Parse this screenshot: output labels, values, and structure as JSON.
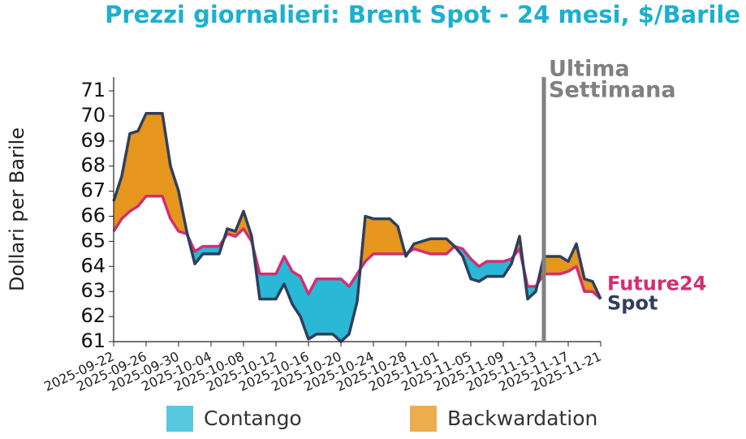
{
  "chart_data": {
    "type": "line",
    "title": "Prezzi giornalieri: Brent Spot - 24 mesi, $/Barile",
    "y_label": "Dollari per Barile",
    "x": [
      "2025-09-22",
      "2025-09-23",
      "2025-09-24",
      "2025-09-25",
      "2025-09-26",
      "2025-09-27",
      "2025-09-28",
      "2025-09-29",
      "2025-09-30",
      "2025-10-01",
      "2025-10-02",
      "2025-10-03",
      "2025-10-04",
      "2025-10-05",
      "2025-10-06",
      "2025-10-07",
      "2025-10-08",
      "2025-10-09",
      "2025-10-10",
      "2025-10-11",
      "2025-10-12",
      "2025-10-13",
      "2025-10-14",
      "2025-10-15",
      "2025-10-16",
      "2025-10-17",
      "2025-10-18",
      "2025-10-19",
      "2025-10-20",
      "2025-10-21",
      "2025-10-22",
      "2025-10-23",
      "2025-10-24",
      "2025-10-25",
      "2025-10-26",
      "2025-10-27",
      "2025-10-28",
      "2025-10-29",
      "2025-10-30",
      "2025-10-31",
      "2025-11-01",
      "2025-11-02",
      "2025-11-03",
      "2025-11-04",
      "2025-11-05",
      "2025-11-06",
      "2025-11-07",
      "2025-11-08",
      "2025-11-09",
      "2025-11-10",
      "2025-11-11",
      "2025-11-12",
      "2025-11-13",
      "2025-11-14",
      "2025-11-15",
      "2025-11-16",
      "2025-11-17",
      "2025-11-18",
      "2025-11-19",
      "2025-11-20",
      "2025-11-21"
    ],
    "series": [
      {
        "name": "Spot",
        "color": "#2e3f5e",
        "values": [
          66.6,
          67.6,
          69.3,
          69.4,
          70.1,
          70.1,
          70.1,
          68.0,
          67.0,
          65.4,
          64.1,
          64.5,
          64.5,
          64.5,
          65.5,
          65.4,
          66.2,
          65.2,
          62.7,
          62.7,
          62.7,
          63.3,
          62.5,
          62.0,
          61.1,
          61.3,
          61.3,
          61.3,
          61.0,
          61.3,
          62.6,
          66.0,
          65.9,
          65.9,
          65.9,
          65.6,
          64.4,
          64.9,
          65.0,
          65.1,
          65.1,
          65.1,
          64.8,
          64.4,
          63.5,
          63.4,
          63.6,
          63.6,
          63.6,
          64.1,
          65.2,
          62.7,
          63.0,
          64.4,
          64.4,
          64.4,
          64.2,
          64.9,
          63.5,
          63.4,
          62.7
        ]
      },
      {
        "name": "Future24",
        "color": "#d42e72",
        "values": [
          65.4,
          65.9,
          66.2,
          66.4,
          66.8,
          66.8,
          66.8,
          65.9,
          65.4,
          65.3,
          64.6,
          64.8,
          64.8,
          64.8,
          65.3,
          65.2,
          65.5,
          65.0,
          63.7,
          63.7,
          63.7,
          64.4,
          63.8,
          63.6,
          62.9,
          63.5,
          63.5,
          63.5,
          63.5,
          63.2,
          63.7,
          64.2,
          64.5,
          64.5,
          64.5,
          64.5,
          64.5,
          64.7,
          64.6,
          64.5,
          64.5,
          64.5,
          64.8,
          64.7,
          64.3,
          64.0,
          64.2,
          64.2,
          64.2,
          64.3,
          64.7,
          63.2,
          63.2,
          63.7,
          63.7,
          63.7,
          63.8,
          64.0,
          63.0,
          63.0,
          62.7
        ]
      }
    ],
    "fills": [
      {
        "name": "Contango",
        "color": "#29b8d5"
      },
      {
        "name": "Backwardation",
        "color": "#e6961c"
      }
    ],
    "annotation": {
      "x": "2025-11-14",
      "text": [
        "Ultima",
        "Settimana"
      ],
      "color": "#808080"
    },
    "xlim": [
      "2025-09-22",
      "2025-11-21"
    ],
    "xticks": [
      "2025-09-22",
      "2025-09-26",
      "2025-09-30",
      "2025-10-04",
      "2025-10-08",
      "2025-10-12",
      "2025-10-16",
      "2025-10-20",
      "2025-10-24",
      "2025-10-28",
      "2025-11-01",
      "2025-11-05",
      "2025-11-09",
      "2025-11-13",
      "2025-11-17",
      "2025-11-21"
    ],
    "ylim": [
      61,
      71.55
    ],
    "yticks": [
      61,
      62,
      63,
      64,
      65,
      66,
      67,
      68,
      69,
      70,
      71
    ],
    "title_color": "#1cb0cf"
  }
}
